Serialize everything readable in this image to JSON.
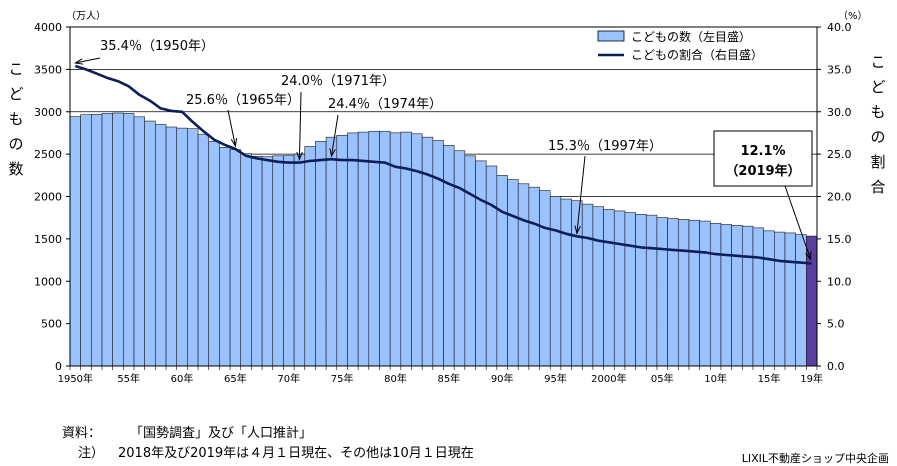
{
  "chart_data": {
    "type": "bar",
    "title": "",
    "left_axis": {
      "unit": "（万人）",
      "label_chars": [
        "こ",
        "ど",
        "も",
        "の",
        "数"
      ],
      "min": 0,
      "max": 4000,
      "step": 500,
      "tick_labels": [
        "0",
        "500",
        "1000",
        "1500",
        "2000",
        "2500",
        "3000",
        "3500",
        "4000"
      ]
    },
    "right_axis": {
      "unit": "（%）",
      "label_chars": [
        "こ",
        "ど",
        "も",
        "の",
        "割",
        "合"
      ],
      "min": 0,
      "max": 40,
      "step": 5,
      "tick_labels": [
        "0.0",
        "5.0",
        "10.0",
        "15.0",
        "20.0",
        "25.0",
        "30.0",
        "35.0",
        "40.0"
      ]
    },
    "x_tick_labels": [
      {
        "year": 1950,
        "label": "1950年"
      },
      {
        "year": 1955,
        "label": "55年"
      },
      {
        "year": 1960,
        "label": "60年"
      },
      {
        "year": 1965,
        "label": "65年"
      },
      {
        "year": 1970,
        "label": "70年"
      },
      {
        "year": 1975,
        "label": "75年"
      },
      {
        "year": 1980,
        "label": "80年"
      },
      {
        "year": 1985,
        "label": "85年"
      },
      {
        "year": 1990,
        "label": "90年"
      },
      {
        "year": 1995,
        "label": "95年"
      },
      {
        "year": 2000,
        "label": "2000年"
      },
      {
        "year": 2005,
        "label": "05年"
      },
      {
        "year": 2010,
        "label": "10年"
      },
      {
        "year": 2015,
        "label": "15年"
      },
      {
        "year": 2019,
        "label": "19年"
      }
    ],
    "years": [
      1950,
      1951,
      1952,
      1953,
      1954,
      1955,
      1956,
      1957,
      1958,
      1959,
      1960,
      1961,
      1962,
      1963,
      1964,
      1965,
      1966,
      1967,
      1968,
      1969,
      1970,
      1971,
      1972,
      1973,
      1974,
      1975,
      1976,
      1977,
      1978,
      1979,
      1980,
      1981,
      1982,
      1983,
      1984,
      1985,
      1986,
      1987,
      1988,
      1989,
      1990,
      1991,
      1992,
      1993,
      1994,
      1995,
      1996,
      1997,
      1998,
      1999,
      2000,
      2001,
      2002,
      2003,
      2004,
      2005,
      2006,
      2007,
      2008,
      2009,
      2010,
      2011,
      2012,
      2013,
      2014,
      2015,
      2016,
      2017,
      2018,
      2019
    ],
    "series": [
      {
        "name": "こどもの数（左目盛）",
        "kind": "bar",
        "axis": "left",
        "color": "#99c2ff",
        "highlight_color": "#5a3fa0",
        "highlight_year": 2019,
        "values": [
          2943,
          2965,
          2970,
          2980,
          2985,
          2980,
          2940,
          2890,
          2850,
          2820,
          2807,
          2800,
          2730,
          2650,
          2580,
          2553,
          2505,
          2475,
          2470,
          2480,
          2482,
          2500,
          2590,
          2650,
          2700,
          2722,
          2750,
          2760,
          2770,
          2770,
          2751,
          2760,
          2740,
          2700,
          2660,
          2604,
          2540,
          2480,
          2420,
          2360,
          2249,
          2200,
          2150,
          2110,
          2070,
          2001,
          1970,
          1950,
          1910,
          1880,
          1847,
          1830,
          1810,
          1790,
          1780,
          1752,
          1740,
          1730,
          1720,
          1710,
          1684,
          1670,
          1660,
          1650,
          1630,
          1595,
          1580,
          1570,
          1550,
          1533
        ]
      },
      {
        "name": "こどもの割合（右目盛）",
        "kind": "line",
        "axis": "right",
        "color": "#0c1d57",
        "values": [
          35.4,
          35.0,
          34.5,
          34.0,
          33.6,
          33.0,
          32.0,
          31.3,
          30.4,
          30.1,
          30.0,
          28.8,
          27.7,
          26.7,
          26.1,
          25.6,
          24.8,
          24.5,
          24.3,
          24.1,
          24.0,
          24.0,
          24.2,
          24.3,
          24.4,
          24.3,
          24.3,
          24.2,
          24.1,
          24.0,
          23.5,
          23.3,
          23.0,
          22.6,
          22.1,
          21.5,
          21.0,
          20.3,
          19.6,
          19.0,
          18.2,
          17.7,
          17.2,
          16.8,
          16.3,
          16.0,
          15.6,
          15.3,
          15.1,
          14.8,
          14.6,
          14.4,
          14.2,
          14.0,
          13.9,
          13.8,
          13.7,
          13.6,
          13.5,
          13.4,
          13.2,
          13.1,
          13.0,
          12.9,
          12.8,
          12.6,
          12.4,
          12.3,
          12.2,
          12.1
        ]
      }
    ],
    "annotations": [
      {
        "text": "35.4％（1950年）",
        "year": 1950,
        "value": 35.4,
        "axis": "right"
      },
      {
        "text": "25.6％（1965年）",
        "year": 1965,
        "value": 25.6,
        "axis": "right"
      },
      {
        "text": "24.0％（1971年）",
        "year": 1971,
        "value": 24.0,
        "axis": "right"
      },
      {
        "text": "24.4％（1974年）",
        "year": 1974,
        "value": 24.4,
        "axis": "right"
      },
      {
        "text": "15.3％（1997年）",
        "year": 1997,
        "value": 15.3,
        "axis": "right"
      }
    ],
    "callout": {
      "line1": "12.1%",
      "line2": "（2019年）",
      "year": 2019,
      "value": 12.1
    },
    "grid": "horizontal",
    "legend": "top-right"
  },
  "footer": {
    "source_label": "資料：",
    "source_text": "「国勢調査」及び「人口推計」",
    "note_label": "注）",
    "note_text": "2018年及び2019年は４月１日現在、その他は10月１日現在",
    "credit": "LIXIL不動産ショップ中央企画"
  }
}
